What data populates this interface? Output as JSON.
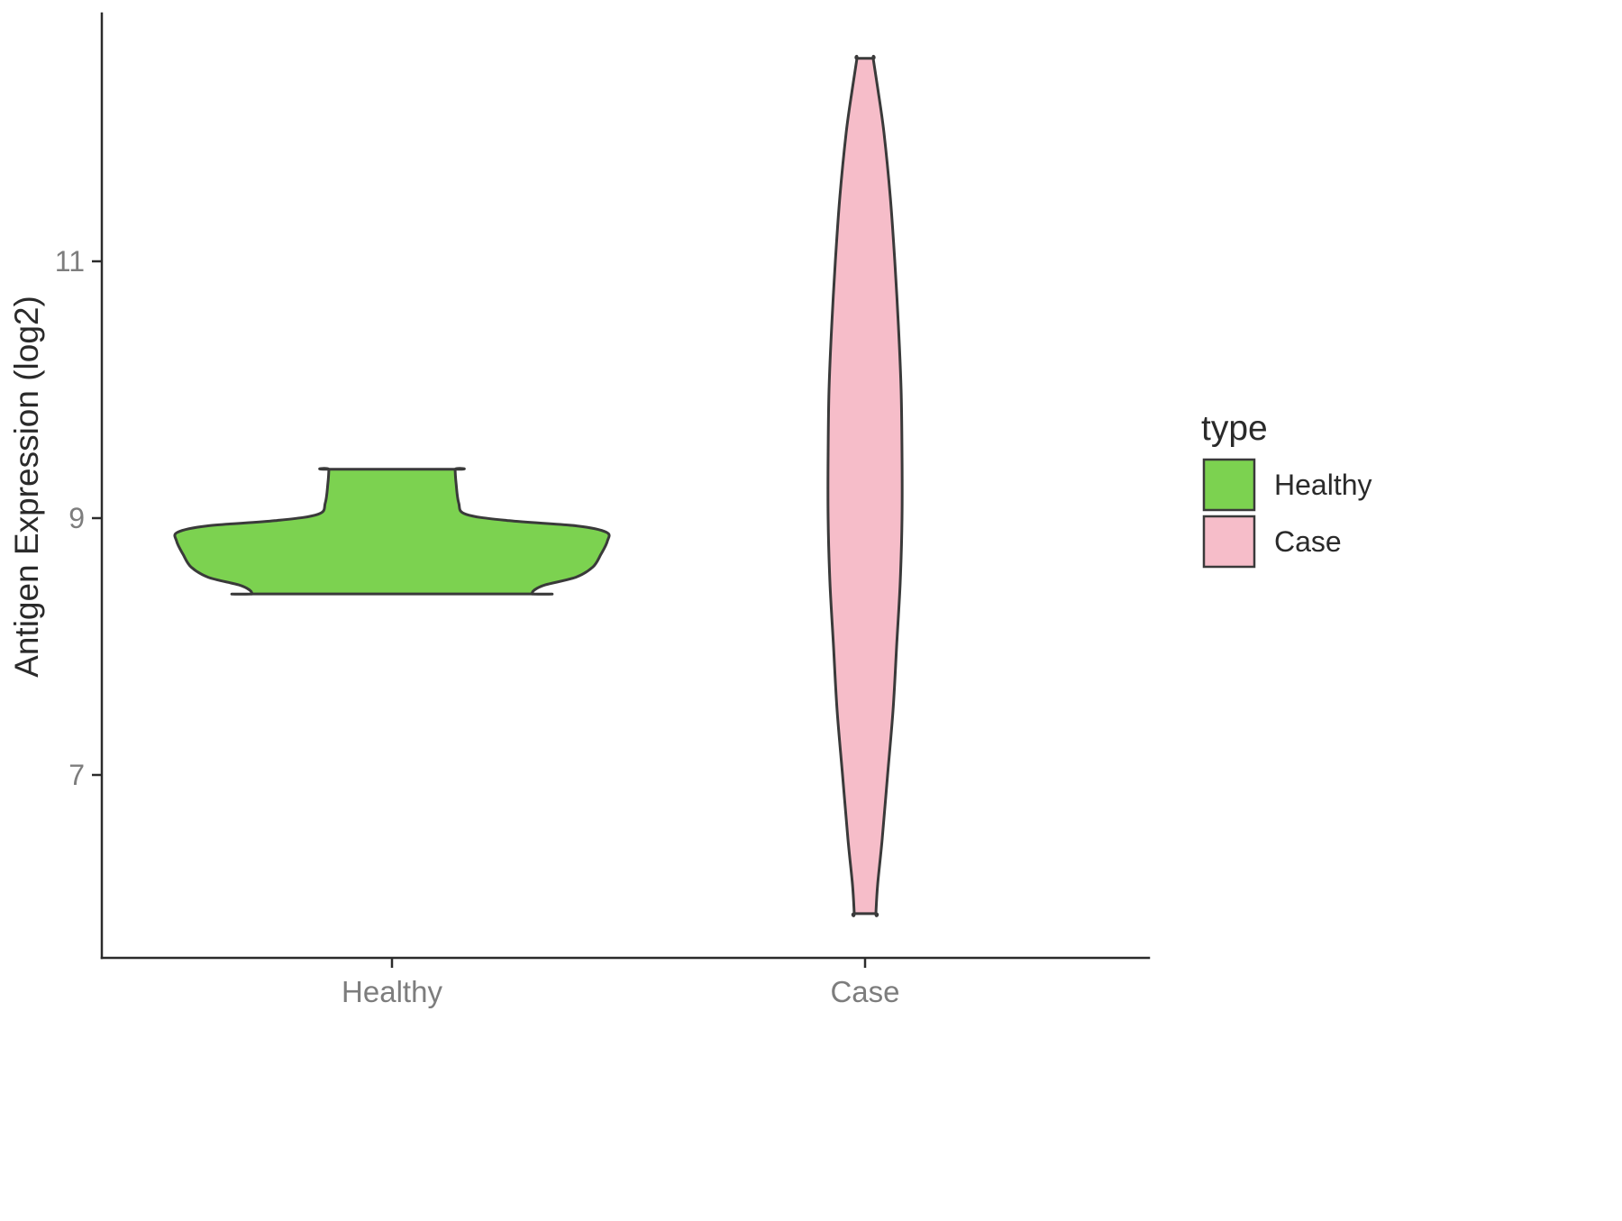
{
  "chart_data": {
    "type": "violin",
    "title": "",
    "xlabel": "",
    "ylabel": "Antigen Expression (log2)",
    "categories": [
      "Healthy",
      "Case"
    ],
    "y_ticks": [
      "7",
      "9",
      "11"
    ],
    "y_tick_values": [
      7,
      9,
      11
    ],
    "ylim": [
      5.6,
      12.95
    ],
    "grid": false,
    "legend": {
      "title": "type",
      "position": "right",
      "entries": [
        {
          "label": "Healthy",
          "color": "#7cd250"
        },
        {
          "label": "Case",
          "color": "#f6bdc9"
        }
      ]
    },
    "series": [
      {
        "name": "Healthy",
        "fill": "#7cd250",
        "stroke": "#3a3a3a",
        "y_range": [
          8.41,
          9.38
        ],
        "profile": [
          [
            9.38,
            70
          ],
          [
            9.28,
            71
          ],
          [
            9.12,
            74
          ],
          [
            9.03,
            82
          ],
          [
            8.98,
            130
          ],
          [
            8.94,
            205
          ],
          [
            8.89,
            238
          ],
          [
            8.82,
            239
          ],
          [
            8.72,
            232
          ],
          [
            8.62,
            223
          ],
          [
            8.54,
            204
          ],
          [
            8.48,
            170
          ],
          [
            8.44,
            158
          ],
          [
            8.41,
            155
          ]
        ]
      },
      {
        "name": "Case",
        "fill": "#f6bdc9",
        "stroke": "#3a3a3a",
        "y_range": [
          5.92,
          12.58
        ],
        "profile": [
          [
            12.58,
            9
          ],
          [
            12.35,
            14
          ],
          [
            12.0,
            21
          ],
          [
            11.5,
            28
          ],
          [
            11.0,
            33
          ],
          [
            10.5,
            37
          ],
          [
            10.0,
            40
          ],
          [
            9.5,
            41
          ],
          [
            9.0,
            41
          ],
          [
            8.5,
            39
          ],
          [
            8.0,
            35
          ],
          [
            7.5,
            31
          ],
          [
            7.0,
            25
          ],
          [
            6.5,
            19
          ],
          [
            6.15,
            14
          ],
          [
            5.92,
            12
          ]
        ]
      }
    ]
  }
}
